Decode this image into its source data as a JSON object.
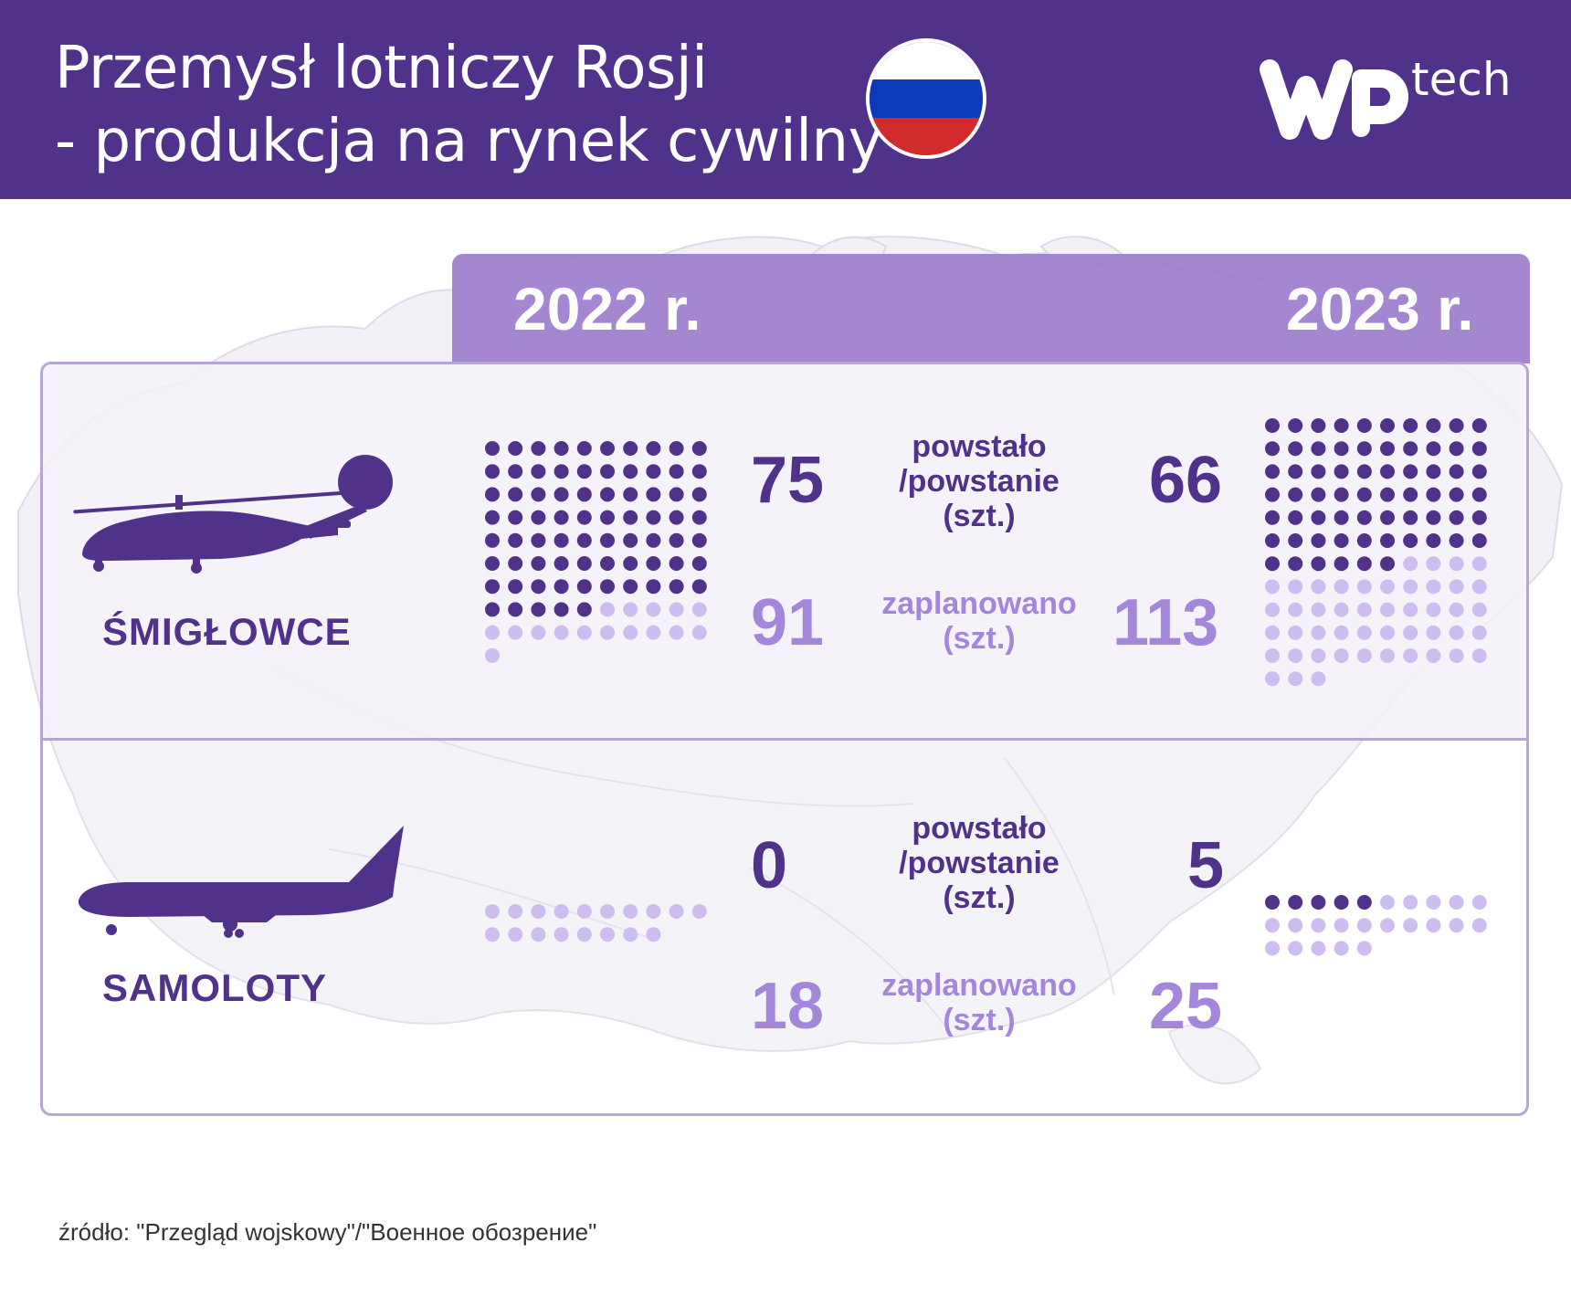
{
  "header": {
    "title_line1": "Przemysł lotniczy Rosji",
    "title_line2": "- produkcja na rynek cywilny",
    "logo_text": "tech",
    "flag_colors": [
      "#ffffff",
      "#0d3ab8",
      "#d22b2b"
    ],
    "background": "#51328a"
  },
  "years": [
    "2022 r.",
    "2023 r."
  ],
  "labels": {
    "built": [
      "powstało",
      "/powstanie",
      "(szt.)"
    ],
    "planned": [
      "zaplanowano",
      "(szt.)"
    ]
  },
  "colors": {
    "built": "#51328a",
    "planned": "#cdbdf0",
    "accent": "#a487db"
  },
  "chart_data": {
    "type": "dot-matrix",
    "dots_per_row": 10,
    "categories": [
      "ŚMIGŁOWCE",
      "SAMOLOTY"
    ],
    "x": [
      "2022 r.",
      "2023 r."
    ],
    "series": [
      {
        "category": "ŚMIGŁOWCE",
        "year": "2022 r.",
        "built": 75,
        "planned": 91,
        "built_text": "75",
        "planned_text": "91"
      },
      {
        "category": "ŚMIGŁOWCE",
        "year": "2023 r.",
        "built": 66,
        "planned": 113,
        "built_text": "66",
        "planned_text": "113"
      },
      {
        "category": "SAMOLOTY",
        "year": "2022 r.",
        "built": 0,
        "planned": 18,
        "built_text": "0",
        "planned_text": "18"
      },
      {
        "category": "SAMOLOTY",
        "year": "2023 r.",
        "built": 5,
        "planned": 25,
        "built_text": "5",
        "planned_text": "25"
      }
    ]
  },
  "source": "źródło: \"Przegląd wojskowy\"/\"Военное обозрение\""
}
